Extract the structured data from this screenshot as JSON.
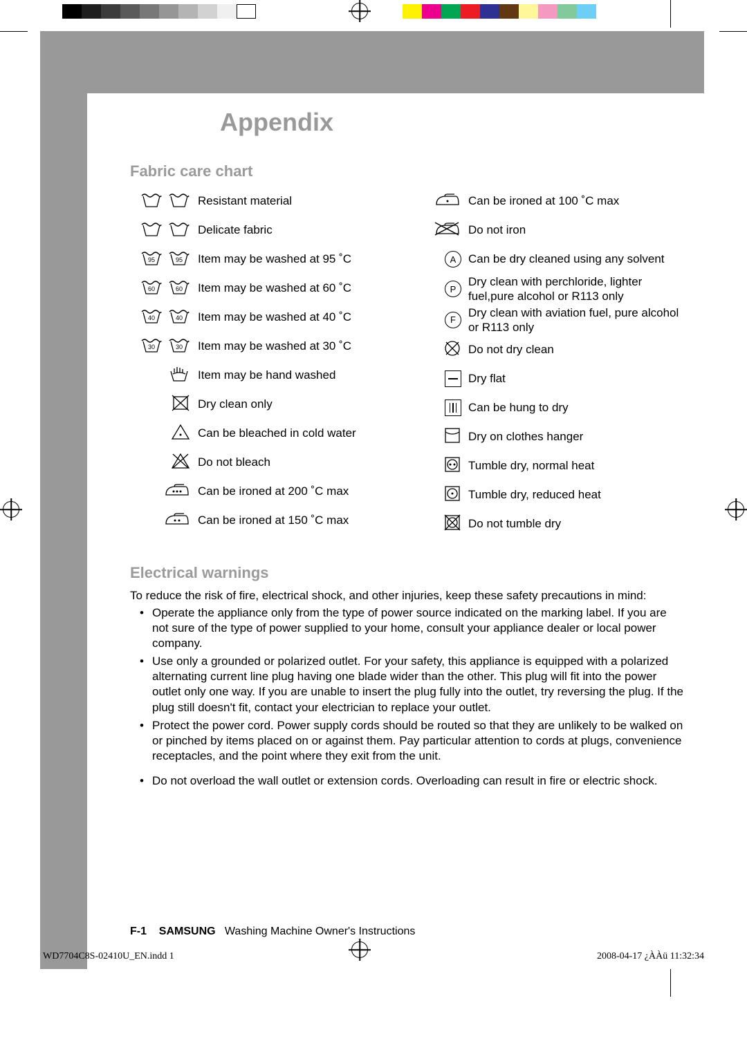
{
  "gray_swatches": [
    "#000000",
    "#1e1e1e",
    "#3c3c3c",
    "#5a5a5a",
    "#787878",
    "#969696",
    "#b4b4b4",
    "#d2d2d2",
    "#f0f0f0",
    "#ffffff"
  ],
  "color_swatches": [
    "#fff200",
    "#ec008c",
    "#00a651",
    "#ed1c24",
    "#2e3192",
    "#603913",
    "#fff799",
    "#f49ac1",
    "#82ca9c",
    "#6dcff6"
  ],
  "title": "Appendix",
  "section_fabric": "Fabric care chart",
  "left_rows": [
    {
      "icons": [
        "wash",
        "wash"
      ],
      "temp": "",
      "label": "Resistant material"
    },
    {
      "icons": [
        "wash",
        "wash"
      ],
      "temp": "",
      "label": "Delicate fabric"
    },
    {
      "icons": [
        "wash95",
        "wash95"
      ],
      "temp": "95",
      "label": "Item may be washed at 95 ˚C"
    },
    {
      "icons": [
        "wash60",
        "wash60"
      ],
      "temp": "60",
      "label": "Item may be washed at 60 ˚C"
    },
    {
      "icons": [
        "wash40",
        "wash40"
      ],
      "temp": "40",
      "label": "Item may be washed at 40 ˚C"
    },
    {
      "icons": [
        "wash30",
        "wash30"
      ],
      "temp": "30",
      "label": "Item may be washed at 30 ˚C"
    },
    {
      "icons": [
        "hand"
      ],
      "temp": "",
      "label": "Item may be hand washed"
    },
    {
      "icons": [
        "dryclean-only"
      ],
      "temp": "",
      "label": "Dry clean only"
    },
    {
      "icons": [
        "bleach"
      ],
      "temp": "",
      "label": "Can be bleached in cold water"
    },
    {
      "icons": [
        "no-bleach"
      ],
      "temp": "",
      "label": "Do not bleach"
    },
    {
      "icons": [
        "iron3"
      ],
      "temp": "",
      "label": "Can be ironed at 200 ˚C max"
    },
    {
      "icons": [
        "iron2"
      ],
      "temp": "",
      "label": "Can be ironed at 150 ˚C max"
    }
  ],
  "right_rows": [
    {
      "icon": "iron1",
      "label": "Can be ironed at 100 ˚C max"
    },
    {
      "icon": "no-iron",
      "label": "Do not iron"
    },
    {
      "icon": "circle-A",
      "label": "Can be dry cleaned using any solvent"
    },
    {
      "icon": "circle-P",
      "label": "Dry clean with perchloride, lighter fuel,pure alcohol or R113 only"
    },
    {
      "icon": "circle-F",
      "label": "Dry clean with aviation fuel, pure alcohol or R113 only"
    },
    {
      "icon": "no-dryclean",
      "label": "Do not dry clean"
    },
    {
      "icon": "dry-flat",
      "label": "Dry flat"
    },
    {
      "icon": "hang-dry",
      "label": "Can be hung to dry"
    },
    {
      "icon": "hanger-dry",
      "label": "Dry on clothes hanger"
    },
    {
      "icon": "tumble-normal",
      "label": "Tumble dry, normal heat"
    },
    {
      "icon": "tumble-reduced",
      "label": "Tumble dry, reduced heat"
    },
    {
      "icon": "no-tumble",
      "label": "Do not tumble dry"
    }
  ],
  "section_elec": "Electrical warnings",
  "elec_intro": "To reduce the risk of fire, electrical shock, and other injuries, keep these safety precautions in mind:",
  "elec_bullets": [
    "Operate the appliance only from the type of power source indicated on the marking label. If you are not sure of the type of power supplied to your home, consult your appliance dealer or local power company.",
    "Use only a grounded or polarized outlet. For your safety, this appliance is equipped with a polarized alternating current line plug having one blade wider than the other. This plug will fit into the power outlet only one way. If you are unable to insert the plug fully into the outlet, try reversing the plug. If the plug still doesn't fit, contact your electrician to replace your outlet.",
    "Protect the power cord. Power supply cords should be routed so that they are unlikely to be walked on or pinched by items placed on or against them. Pay particular attention to cords at plugs, convenience receptacles, and the point where they exit from the unit.",
    "Do not overload the wall outlet or extension cords. Overloading can result in fire or electric shock."
  ],
  "footer_page": "F-1",
  "footer_brand": "SAMSUNG",
  "footer_text": "Washing Machine Owner's Instructions",
  "indd_left": "WD7704C8S-02410U_EN.indd   1",
  "indd_right": "2008-04-17   ¿ÀÀü 11:32:34"
}
